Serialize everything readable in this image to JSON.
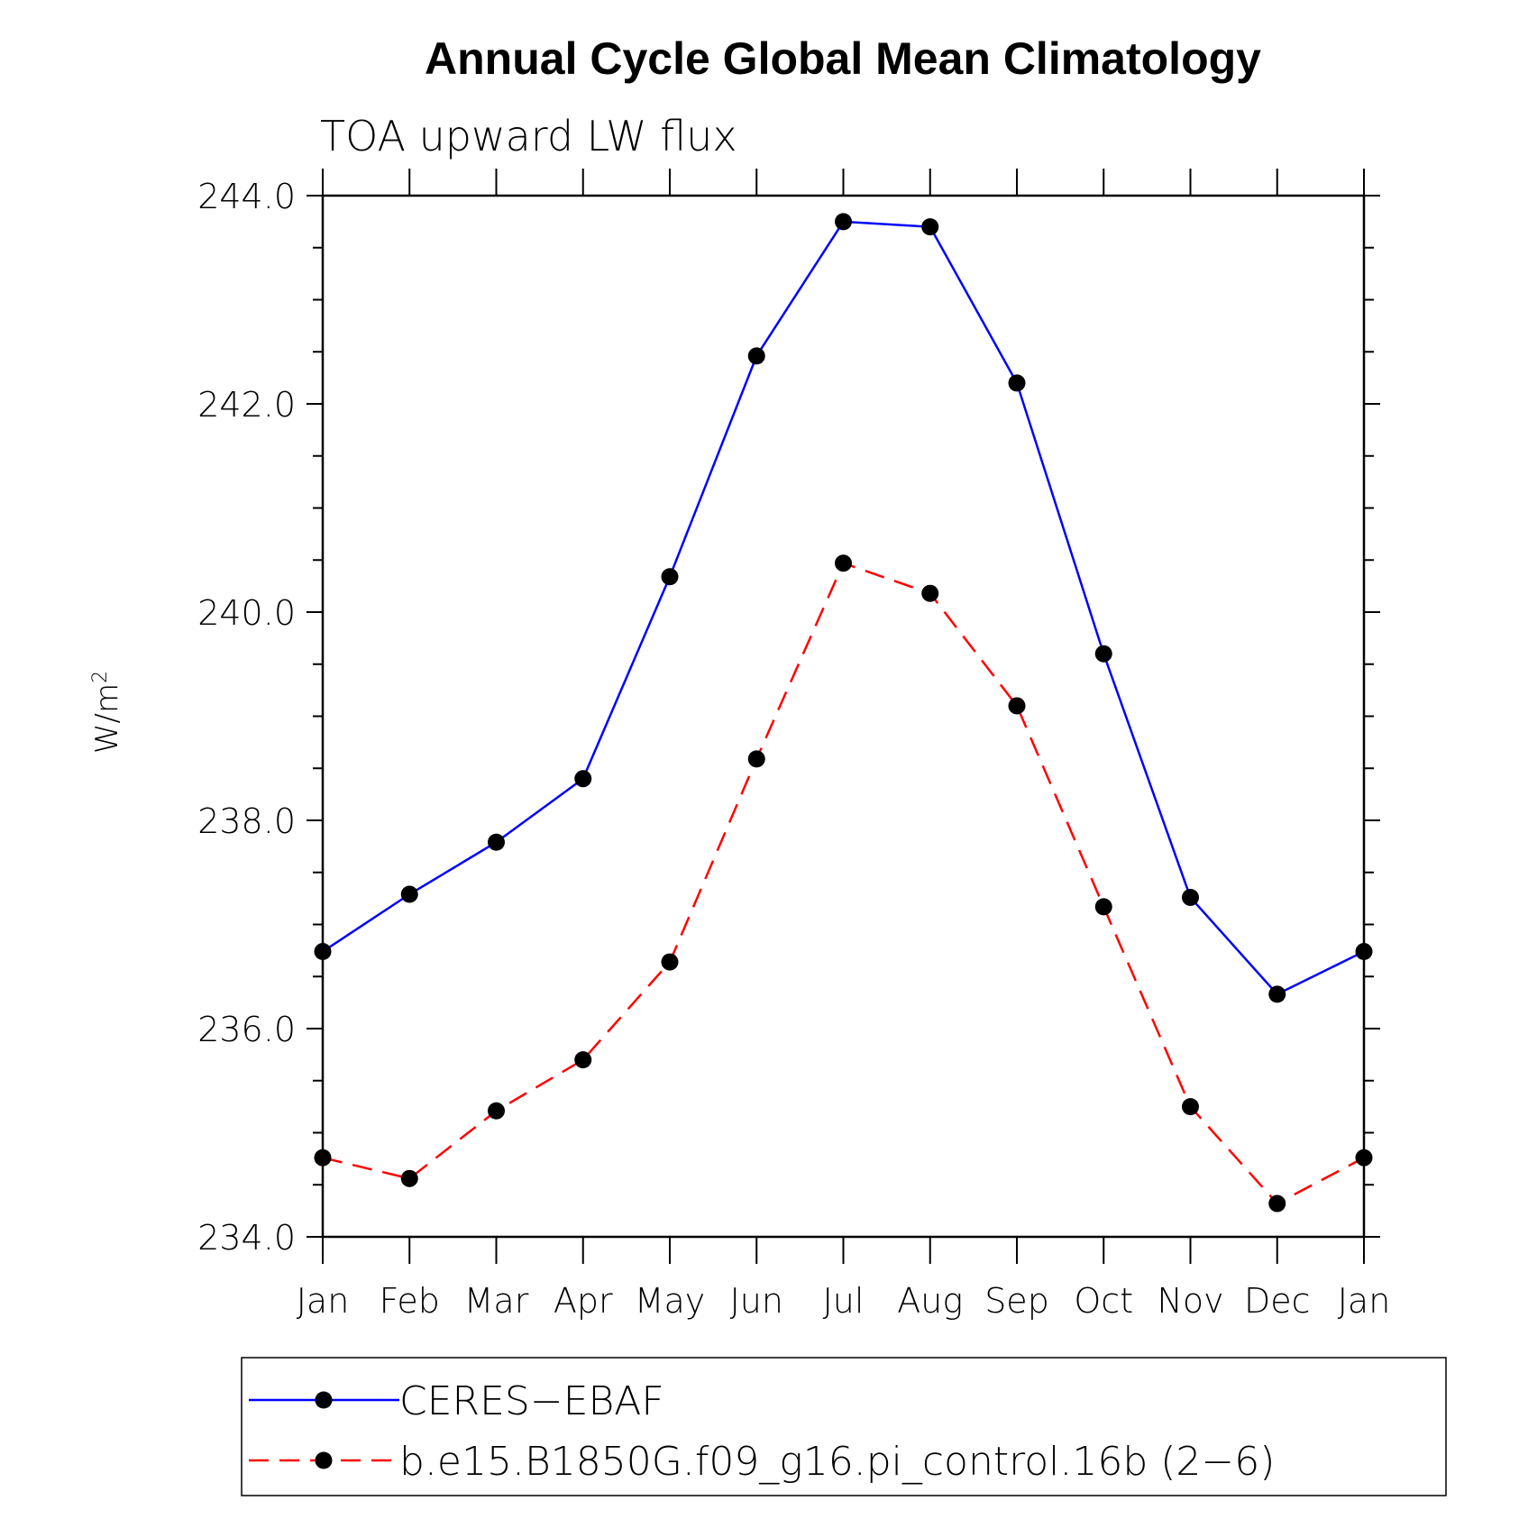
{
  "chart_data": {
    "type": "line",
    "title": "Annual Cycle Global Mean Climatology",
    "subtitle": "TOA upward LW flux",
    "ylabel": "W/m",
    "ylabel_superscript": "2",
    "categories": [
      "Jan",
      "Feb",
      "Mar",
      "Apr",
      "May",
      "Jun",
      "Jul",
      "Aug",
      "Sep",
      "Oct",
      "Nov",
      "Dec",
      "Jan"
    ],
    "ylim": [
      234.0,
      244.0
    ],
    "yticks": [
      "234.0",
      "236.0",
      "238.0",
      "240.0",
      "242.0",
      "244.0"
    ],
    "series": [
      {
        "name": "CERES−EBAF",
        "color": "#0000ff",
        "style": "solid",
        "values": [
          236.74,
          237.29,
          237.79,
          238.4,
          240.34,
          242.46,
          243.75,
          243.7,
          242.2,
          239.6,
          237.26,
          236.33,
          236.74
        ]
      },
      {
        "name": "b.e15.B1850G.f09_g16.pi_control.16b (2−6)",
        "color": "#ff0000",
        "style": "dashed",
        "values": [
          234.76,
          234.56,
          235.21,
          235.7,
          236.64,
          238.59,
          240.47,
          240.18,
          239.1,
          237.17,
          235.25,
          234.32,
          234.76
        ]
      }
    ],
    "grid": false,
    "legend_placement": "bottom"
  }
}
